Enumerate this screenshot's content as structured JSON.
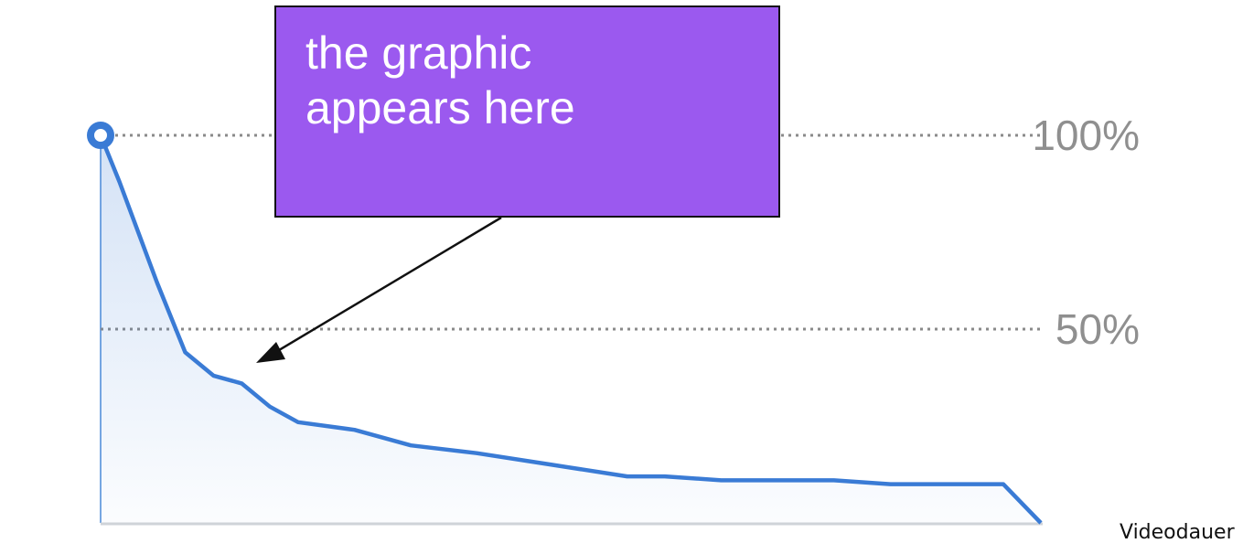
{
  "chart_data": {
    "type": "area",
    "x": [
      0,
      2,
      6,
      9,
      12,
      15,
      18,
      21,
      27,
      33,
      40,
      48,
      56,
      60,
      66,
      72,
      78,
      84,
      90,
      96,
      100
    ],
    "values": [
      100,
      88,
      62,
      44,
      38,
      36,
      30,
      26,
      24,
      20,
      18,
      15,
      12,
      12,
      11,
      11,
      11,
      10,
      10,
      10,
      0
    ],
    "ylim": [
      0,
      100
    ],
    "yticks": [
      "50%",
      "100%"
    ],
    "ytick_values": [
      50,
      100
    ],
    "xlabel": "Videodauer",
    "grid": "dotted horizontal",
    "line_color": "#3a7bd5"
  },
  "callout": {
    "lines": [
      "the graphic",
      "appears here"
    ],
    "color": "#9b59ef"
  }
}
